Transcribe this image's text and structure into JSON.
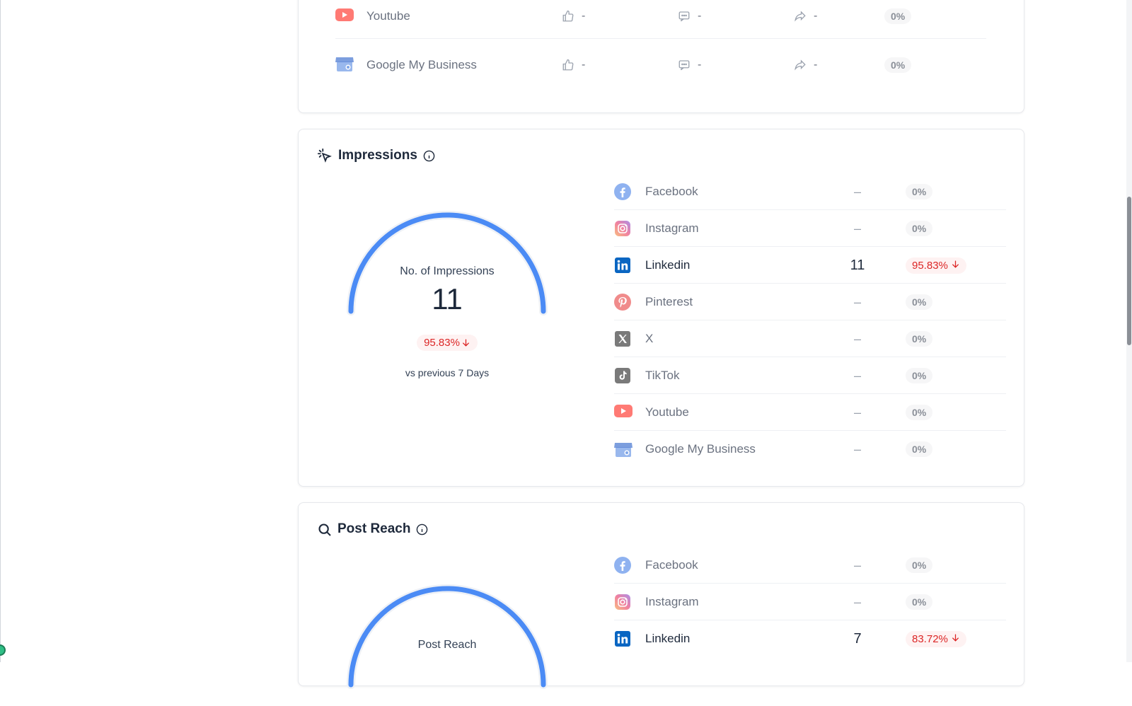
{
  "engagement_rows": [
    {
      "platform": "Youtube",
      "icon": "youtube-icon",
      "likes": "-",
      "comments": "-",
      "shares": "-",
      "pct": "0%"
    },
    {
      "platform": "Google My Business",
      "icon": "google-my-business-icon",
      "likes": "-",
      "comments": "-",
      "shares": "-",
      "pct": "0%"
    }
  ],
  "impressions": {
    "title": "Impressions",
    "gauge_label": "No. of Impressions",
    "gauge_value": "11",
    "change": "95.83%",
    "compare_text": "vs previous 7 Days",
    "platforms": [
      {
        "name": "Facebook",
        "value": "–",
        "pct": "0%"
      },
      {
        "name": "Instagram",
        "value": "–",
        "pct": "0%"
      },
      {
        "name": "Linkedin",
        "value": "11",
        "pct": "95.83%"
      },
      {
        "name": "Pinterest",
        "value": "–",
        "pct": "0%"
      },
      {
        "name": "X",
        "value": "–",
        "pct": "0%"
      },
      {
        "name": "TikTok",
        "value": "–",
        "pct": "0%"
      },
      {
        "name": "Youtube",
        "value": "–",
        "pct": "0%"
      },
      {
        "name": "Google My Business",
        "value": "–",
        "pct": "0%"
      }
    ]
  },
  "post_reach": {
    "title": "Post Reach",
    "gauge_label": "Post Reach",
    "platforms": [
      {
        "name": "Facebook",
        "value": "–",
        "pct": "0%"
      },
      {
        "name": "Instagram",
        "value": "–",
        "pct": "0%"
      },
      {
        "name": "Linkedin",
        "value": "7",
        "pct": "83.72%"
      }
    ]
  },
  "colors": {
    "accent_blue": "#4b8bf5",
    "negative_red": "#dc2626",
    "linkedin": "#0a66c2",
    "youtube": "#ff4e45",
    "pinterest": "#e60023"
  }
}
